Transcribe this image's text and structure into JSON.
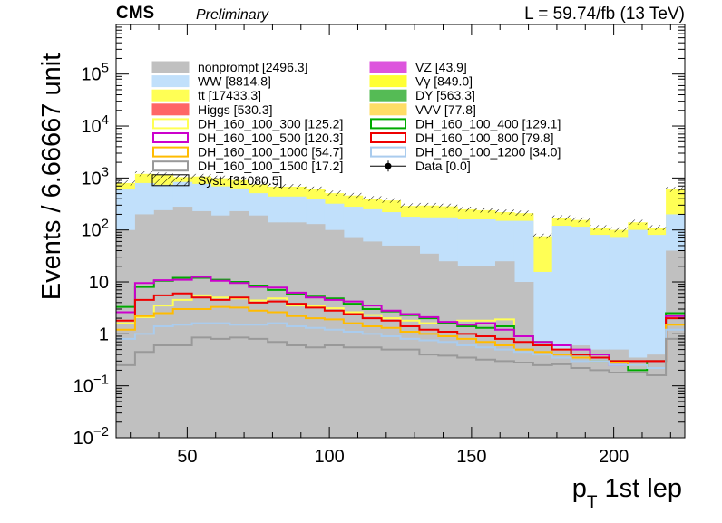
{
  "header": {
    "experiment": "CMS",
    "status": "Preliminary",
    "luminosity": "L = 59.74/fb (13 TeV)"
  },
  "chart_data": {
    "type": "histogram-stack",
    "xlabel_main": "p",
    "xlabel_sub": "T",
    "xlabel_rest": " 1st lep",
    "ylabel": "Events / 6.66667 unit",
    "yscale": "log",
    "xlim": [
      25,
      225
    ],
    "ylim": [
      0.01,
      900000
    ],
    "bin_edges": [
      25,
      31.67,
      38.33,
      45,
      51.67,
      58.33,
      65,
      71.67,
      78.33,
      85,
      91.67,
      98.33,
      105,
      111.67,
      118.33,
      125,
      131.67,
      138.33,
      145,
      151.67,
      158.33,
      165,
      171.67,
      178.33,
      185,
      191.67,
      198.33,
      205,
      211.67,
      218.33,
      225
    ],
    "x_ticks": [
      {
        "value": 50,
        "label": "50"
      },
      {
        "value": 100,
        "label": "100"
      },
      {
        "value": 150,
        "label": "150"
      },
      {
        "value": 200,
        "label": "200"
      }
    ],
    "y_ticks": [
      {
        "value": 0.01,
        "base": "10",
        "exp": "−2"
      },
      {
        "value": 0.1,
        "base": "10",
        "exp": "−1"
      },
      {
        "value": 1,
        "base": "1",
        "exp": ""
      },
      {
        "value": 10,
        "base": "10",
        "exp": ""
      },
      {
        "value": 100,
        "base": "10",
        "exp": "2"
      },
      {
        "value": 1000,
        "base": "10",
        "exp": "3"
      },
      {
        "value": 10000,
        "base": "10",
        "exp": "4"
      },
      {
        "value": 100000,
        "base": "10",
        "exp": "5"
      }
    ],
    "stack": [
      {
        "name": "nonprompt [2496.3]",
        "color": "#c0c0c0",
        "values": [
          100,
          200,
          240,
          280,
          230,
          190,
          230,
          190,
          140,
          140,
          130,
          100,
          70,
          60,
          50,
          50,
          35,
          25,
          20,
          20,
          25,
          10,
          0.6,
          0.5,
          0.6,
          0.5,
          0.5,
          0.35,
          0.4,
          40
        ]
      },
      {
        "name": "WW [8814.8]",
        "color": "#c1e0fb",
        "values": [
          500,
          600,
          500,
          560,
          540,
          500,
          400,
          320,
          300,
          300,
          260,
          220,
          210,
          190,
          170,
          130,
          140,
          150,
          140,
          140,
          125,
          140,
          15,
          120,
          115,
          80,
          70,
          100,
          80,
          160
        ]
      },
      {
        "name": "tt [17433.3]",
        "color": "#ffff55",
        "values": [
          200,
          400,
          400,
          200,
          300,
          300,
          280,
          240,
          240,
          240,
          220,
          190,
          180,
          150,
          150,
          110,
          120,
          110,
          90,
          80,
          70,
          60,
          60,
          50,
          40,
          30,
          30,
          40,
          30,
          400
        ]
      }
    ],
    "signals": [
      {
        "name": "DH_160_100_300 [125.2]",
        "color": "#ffff55",
        "values": [
          1.6,
          2.1,
          3.5,
          4.5,
          5.5,
          5.0,
          4.8,
          4.4,
          4.8,
          3.5,
          3.4,
          3.1,
          2.6,
          2.3,
          2.0,
          1.8,
          1.6,
          1.6,
          1.8,
          1.8,
          1.9,
          0.9,
          0.6,
          0.5,
          0.5,
          0.4,
          0.3,
          0.3,
          0.3,
          1.5
        ]
      },
      {
        "name": "DH_160_100_400 [129.1]",
        "color": "#00aa00",
        "values": [
          3.3,
          8.0,
          10.5,
          12.0,
          12.0,
          11.0,
          10.0,
          8.5,
          7.0,
          5.8,
          5.2,
          4.8,
          3.8,
          3.0,
          2.7,
          2.3,
          2.0,
          1.6,
          1.4,
          1.3,
          1.4,
          0.9,
          0.7,
          0.6,
          0.4,
          0.3,
          0.3,
          0.2,
          0.3,
          2.5
        ]
      },
      {
        "name": "DH_160_100_500 [120.3]",
        "color": "#cc00cc",
        "values": [
          2.6,
          9.5,
          10.8,
          11.0,
          12.5,
          10.5,
          9.5,
          8.0,
          7.8,
          6.2,
          5.0,
          4.5,
          4.2,
          3.5,
          2.8,
          2.4,
          2.1,
          1.7,
          1.5,
          1.6,
          1.2,
          0.9,
          0.7,
          0.6,
          0.5,
          0.4,
          0.25,
          0.3,
          0.3,
          2.2
        ]
      },
      {
        "name": "DH_160_100_800 [79.8]",
        "color": "#ee0000",
        "values": [
          1.8,
          4.5,
          5.5,
          6.0,
          5.0,
          4.5,
          5.0,
          4.0,
          4.2,
          3.8,
          3.2,
          2.8,
          2.4,
          2.0,
          1.8,
          1.4,
          1.2,
          1.1,
          1.0,
          0.9,
          0.8,
          0.7,
          0.6,
          0.5,
          0.4,
          0.35,
          0.3,
          0.3,
          0.3,
          2.0
        ]
      },
      {
        "name": "DH_160_100_1000 [54.7]",
        "color": "#ffbb00",
        "values": [
          1.2,
          2.2,
          2.5,
          3.0,
          3.0,
          3.3,
          3.2,
          2.8,
          2.6,
          2.2,
          2.0,
          1.9,
          1.6,
          1.4,
          1.3,
          1.1,
          1.0,
          0.9,
          0.8,
          0.7,
          0.6,
          0.5,
          0.45,
          0.4,
          0.35,
          0.3,
          0.28,
          0.25,
          0.22,
          1.5
        ]
      },
      {
        "name": "DH_160_100_1200 [34.0]",
        "color": "#aaccee",
        "values": [
          0.8,
          1.0,
          1.4,
          1.5,
          1.6,
          1.6,
          1.5,
          1.5,
          1.6,
          1.4,
          1.3,
          1.2,
          1.1,
          1.0,
          0.9,
          0.8,
          0.75,
          0.7,
          0.6,
          0.55,
          0.5,
          0.45,
          0.4,
          0.35,
          0.3,
          0.3,
          0.25,
          0.25,
          0.22,
          1.2
        ]
      },
      {
        "name": "DH_160_100_1500 [17.2]",
        "color": "#999999",
        "values": [
          0.25,
          0.45,
          0.6,
          0.6,
          0.85,
          0.8,
          0.85,
          0.8,
          0.7,
          0.6,
          0.55,
          0.6,
          0.55,
          0.55,
          0.5,
          0.5,
          0.4,
          0.38,
          0.35,
          0.32,
          0.3,
          0.28,
          0.25,
          0.26,
          0.22,
          0.2,
          0.18,
          0.18,
          0.16,
          0.8
        ]
      }
    ],
    "legend": {
      "placement": "top-left, two columns",
      "left": [
        {
          "label": "nonprompt [2496.3]",
          "style": "fill",
          "color": "#c0c0c0"
        },
        {
          "label": "WW [8814.8]",
          "style": "fill",
          "color": "#c1e0fb"
        },
        {
          "label": "tt [17433.3]",
          "style": "fill",
          "color": "#ffff55"
        },
        {
          "label": "Higgs [530.3]",
          "style": "fill",
          "color": "#ff6666"
        },
        {
          "label": "DH_160_100_300 [125.2]",
          "style": "line",
          "color": "#ffff55"
        },
        {
          "label": "DH_160_100_500 [120.3]",
          "style": "line",
          "color": "#cc00cc"
        },
        {
          "label": "DH_160_100_1000 [54.7]",
          "style": "line",
          "color": "#ffbb00"
        },
        {
          "label": "DH_160_100_1500 [17.2]",
          "style": "line",
          "color": "#999999"
        },
        {
          "label": "Syst. [31080.5]",
          "style": "hatch",
          "color": "#000000"
        }
      ],
      "right": [
        {
          "label": "VZ [43.9]",
          "style": "fill",
          "color": "#dd55dd"
        },
        {
          "label": "Vγ [849.0]",
          "style": "fill",
          "color": "#ffff33"
        },
        {
          "label": "DY [563.3]",
          "style": "fill",
          "color": "#55bb55"
        },
        {
          "label": "VVV [77.8]",
          "style": "fill",
          "color": "#ffdd66"
        },
        {
          "label": "DH_160_100_400 [129.1]",
          "style": "line",
          "color": "#00aa00"
        },
        {
          "label": "DH_160_100_800 [79.8]",
          "style": "line",
          "color": "#ee0000"
        },
        {
          "label": "DH_160_100_1200 [34.0]",
          "style": "line",
          "color": "#aaccee"
        },
        {
          "label": "Data [0.0]",
          "style": "marker",
          "color": "#000000"
        }
      ]
    }
  }
}
